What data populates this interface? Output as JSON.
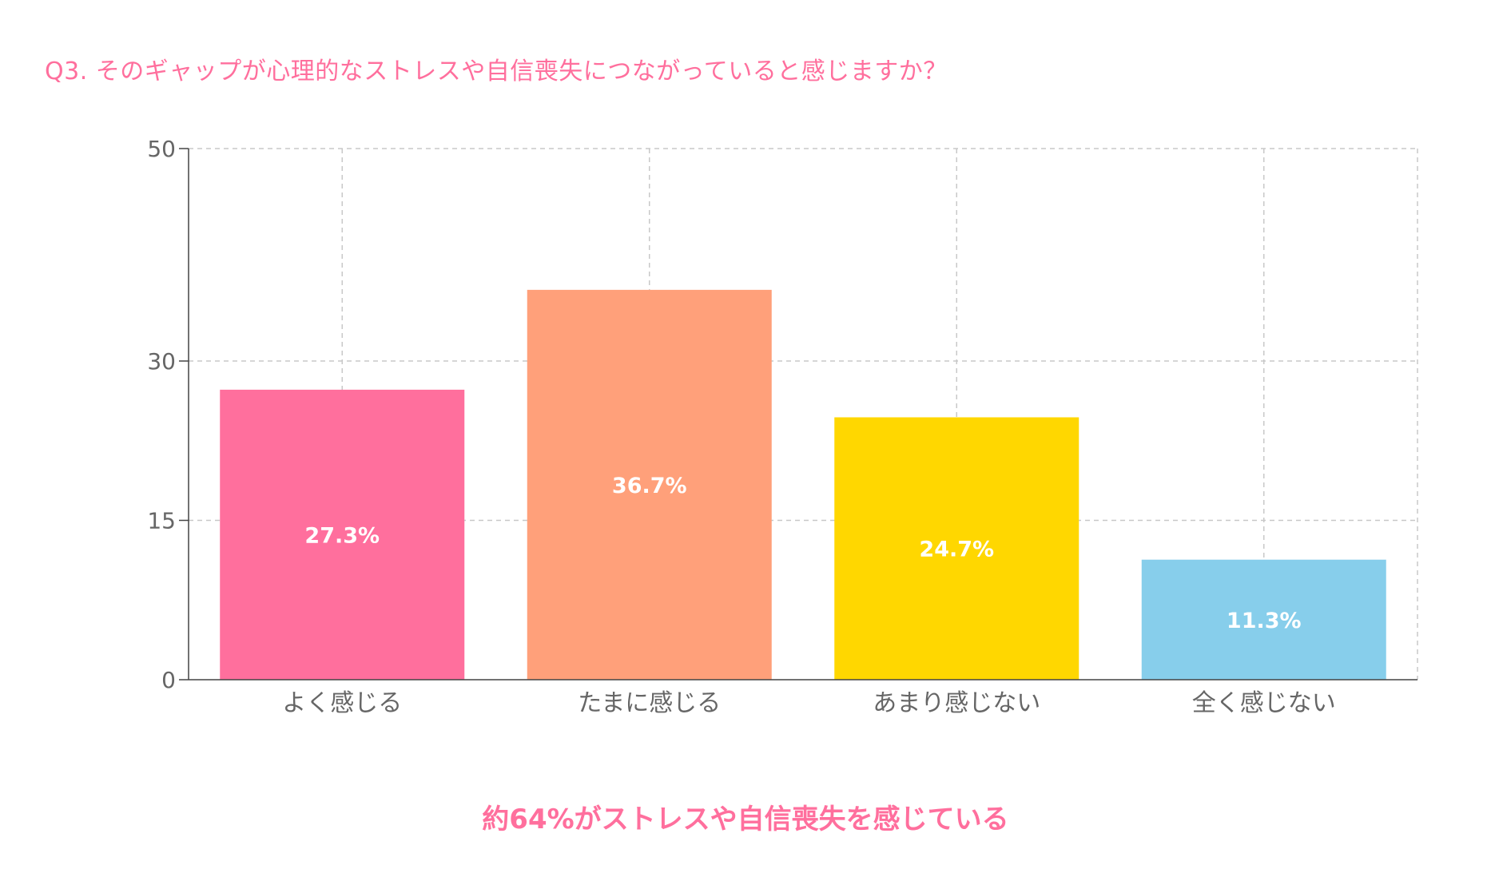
{
  "title": "Q3. そのギャップが心理的なストレスや自信喪失につながっていると感じますか？",
  "summary": "約64%がストレスや自信喪失を感じている",
  "chart_data": {
    "type": "bar",
    "categories": [
      "よく感じる",
      "たまに感じる",
      "あまり感じない",
      "全く感じない"
    ],
    "values": [
      27.3,
      36.7,
      24.7,
      11.3
    ],
    "value_labels": [
      "27.3%",
      "36.7%",
      "24.7%",
      "11.3%"
    ],
    "colors": [
      "#ff6f9d",
      "#ffa07a",
      "#ffd700",
      "#87ceeb"
    ],
    "ylim": [
      0,
      50
    ],
    "yticks": [
      0,
      15,
      30,
      50
    ],
    "grid": true,
    "xlabel": "",
    "ylabel": ""
  }
}
